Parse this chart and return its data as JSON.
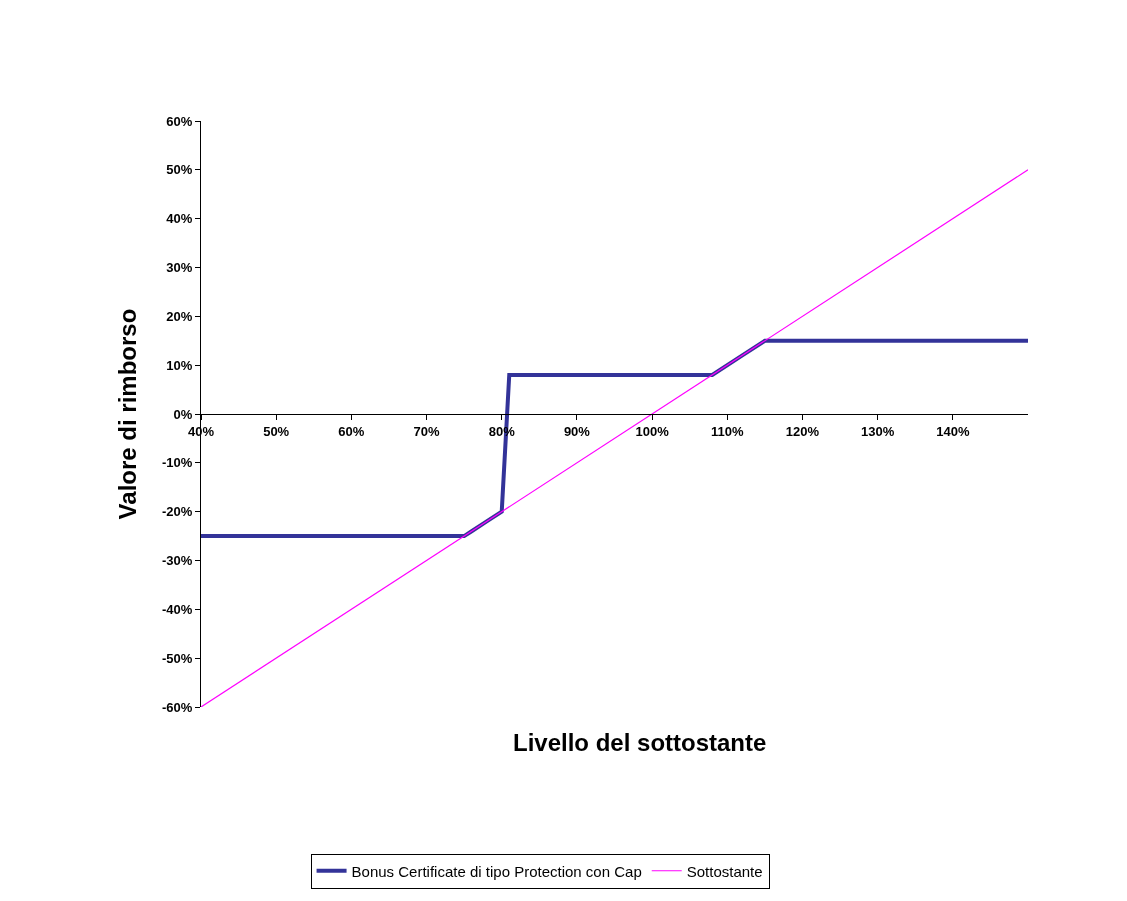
{
  "chart_data": {
    "type": "line",
    "xlabel": "Livello del sottostante",
    "ylabel": "Valore di rimborso",
    "series": [
      {
        "name": "Bonus Certificate di tipo Protection con Cap",
        "color": "#333399",
        "x": [
          40,
          75,
          76,
          78,
          80,
          81,
          108,
          112,
          115,
          150
        ],
        "values": [
          -25,
          -25,
          -24,
          -22,
          -20,
          8,
          8,
          12,
          15,
          15
        ]
      },
      {
        "name": "Sottostante",
        "color": "#ff00ff",
        "x": [
          40,
          150
        ],
        "values": [
          -60,
          50
        ]
      }
    ],
    "xlim": [
      40,
      150
    ],
    "xticks": [
      {
        "value": 40,
        "label": "40%"
      },
      {
        "value": 50,
        "label": "50%"
      },
      {
        "value": 60,
        "label": "60%"
      },
      {
        "value": 70,
        "label": "70%"
      },
      {
        "value": 80,
        "label": "80%"
      },
      {
        "value": 90,
        "label": "90%"
      },
      {
        "value": 100,
        "label": "100%"
      },
      {
        "value": 110,
        "label": "110%"
      },
      {
        "value": 120,
        "label": "120%"
      },
      {
        "value": 130,
        "label": "130%"
      },
      {
        "value": 140,
        "label": "140%"
      }
    ],
    "ylim": [
      -60,
      60
    ],
    "yticks": [
      {
        "value": -60,
        "label": "-60%"
      },
      {
        "value": -50,
        "label": "-50%"
      },
      {
        "value": -40,
        "label": "-40%"
      },
      {
        "value": -30,
        "label": "-30%"
      },
      {
        "value": -20,
        "label": "-20%"
      },
      {
        "value": -10,
        "label": "-10%"
      },
      {
        "value": 0,
        "label": "0%"
      },
      {
        "value": 10,
        "label": "10%"
      },
      {
        "value": 20,
        "label": "20%"
      },
      {
        "value": 30,
        "label": "30%"
      },
      {
        "value": 40,
        "label": "40%"
      },
      {
        "value": 50,
        "label": "50%"
      },
      {
        "value": 60,
        "label": "60%"
      }
    ],
    "legend": "bottom",
    "marker": "none",
    "line_style": "solid"
  }
}
